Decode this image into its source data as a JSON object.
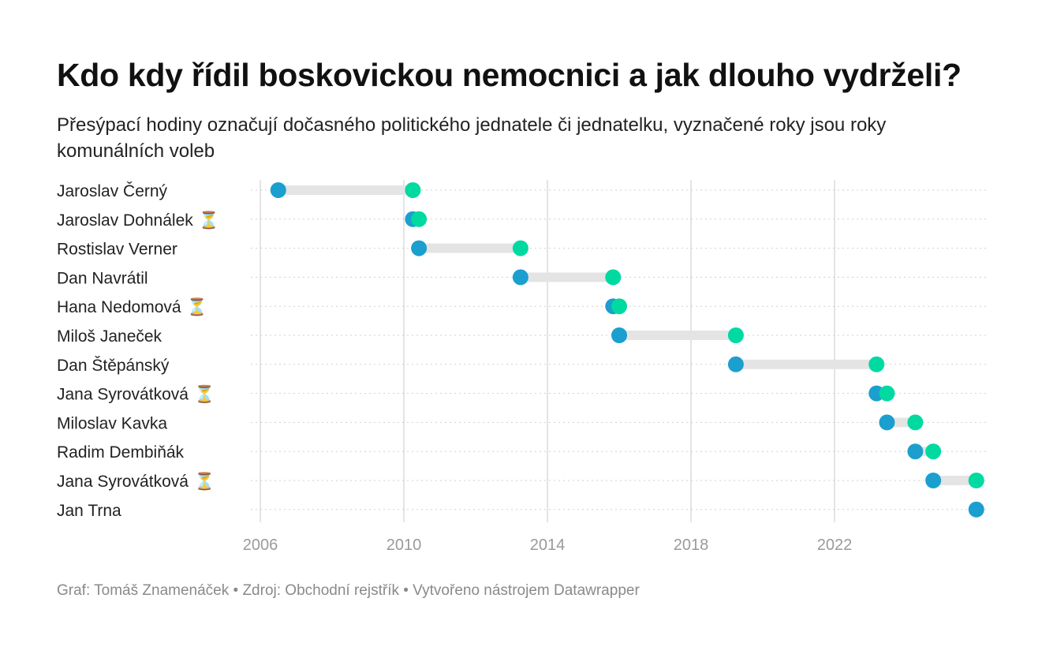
{
  "chart_data": {
    "type": "dot-range",
    "title": "Kdo kdy řídil boskovickou nemocnici a jak dlouho vydrželi?",
    "subtitle": "Přesýpací hodiny označují dočasného politického jednatele či jednatelku, vyznačené roky jsou roky komunálních voleb",
    "footer": "Graf: Tomáš Znamenáček • Zdroj: Obchodní rejstřík • Vytvořeno nástrojem Datawrapper",
    "xlim": [
      2006,
      2026
    ],
    "x_ticks": [
      2006,
      2010,
      2014,
      2018,
      2022
    ],
    "x_tick_labels": [
      "2006",
      "2010",
      "2014",
      "2018",
      "2022"
    ],
    "grid": true,
    "interim_marker": "⏳",
    "colors": {
      "start": "#1a9fcf",
      "end": "#00d9a0",
      "bar": "#e4e4e4"
    },
    "rows": [
      {
        "label": "Jaroslav Černý",
        "interim": false,
        "start": 2006.5,
        "end": 2010.25
      },
      {
        "label": "Jaroslav Dohnálek",
        "interim": true,
        "start": 2010.25,
        "end": 2010.42
      },
      {
        "label": "Rostislav Verner",
        "interim": false,
        "start": 2010.42,
        "end": 2013.25
      },
      {
        "label": "Dan Navrátil",
        "interim": false,
        "start": 2013.25,
        "end": 2015.83
      },
      {
        "label": "Hana Nedomová",
        "interim": true,
        "start": 2015.83,
        "end": 2016.0
      },
      {
        "label": "Miloš Janeček",
        "interim": false,
        "start": 2016.0,
        "end": 2019.25
      },
      {
        "label": "Dan Štěpánský",
        "interim": false,
        "start": 2019.25,
        "end": 2023.17
      },
      {
        "label": "Jana Syrovátková",
        "interim": true,
        "start": 2023.17,
        "end": 2023.46
      },
      {
        "label": "Miloslav Kavka",
        "interim": false,
        "start": 2023.46,
        "end": 2024.25
      },
      {
        "label": "Radim Dembiňák",
        "interim": false,
        "start": 2024.25,
        "end": 2024.75
      },
      {
        "label": "Jana Syrovátková",
        "interim": true,
        "start": 2024.75,
        "end": 2025.95
      },
      {
        "label": "Jan Trna",
        "interim": false,
        "start": 2025.95,
        "end": null
      }
    ]
  }
}
